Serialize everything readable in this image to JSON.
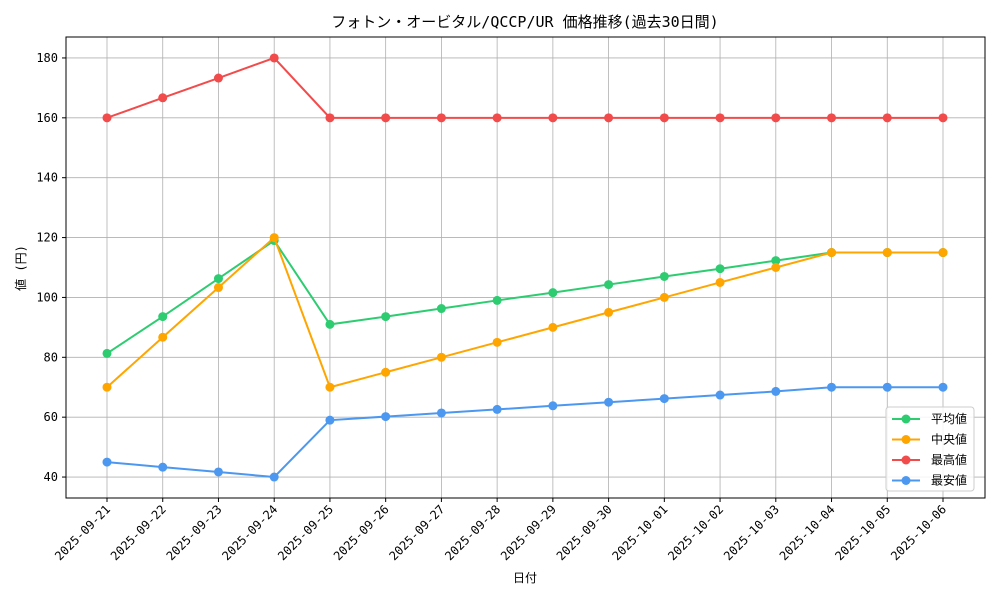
{
  "chart_data": {
    "type": "line",
    "title": "フォトン・オービタル/QCCP/UR 価格推移(過去30日間)",
    "xlabel": "日付",
    "ylabel": "値 (円)",
    "categories": [
      "2025-09-21",
      "2025-09-22",
      "2025-09-23",
      "2025-09-24",
      "2025-09-25",
      "2025-09-26",
      "2025-09-27",
      "2025-09-28",
      "2025-09-29",
      "2025-09-30",
      "2025-10-01",
      "2025-10-02",
      "2025-10-03",
      "2025-10-04",
      "2025-10-05",
      "2025-10-06"
    ],
    "ylim": [
      33,
      187
    ],
    "yticks": [
      40,
      60,
      80,
      100,
      120,
      140,
      160,
      180
    ],
    "grid": true,
    "legend_position": "bottom-right",
    "series": [
      {
        "name": "平均値",
        "color": "#2ecc71",
        "values": [
          81.3,
          93.6,
          106.3,
          119.0,
          91.0,
          93.6,
          96.3,
          99.0,
          101.6,
          104.3,
          107.0,
          109.6,
          112.3,
          115.0,
          115.0,
          115.0
        ]
      },
      {
        "name": "中央値",
        "color": "#ffa500",
        "values": [
          70,
          86.7,
          103.3,
          120,
          70,
          75,
          80,
          85,
          90,
          95,
          100,
          105,
          110,
          115,
          115,
          115
        ]
      },
      {
        "name": "最高値",
        "color": "#f24b4b",
        "values": [
          160,
          166.7,
          173.3,
          180,
          160,
          160,
          160,
          160,
          160,
          160,
          160,
          160,
          160,
          160,
          160,
          160
        ]
      },
      {
        "name": "最安値",
        "color": "#4c98f0",
        "values": [
          45,
          43.3,
          41.7,
          40,
          59,
          60.2,
          61.4,
          62.6,
          63.8,
          65.0,
          66.2,
          67.4,
          68.6,
          70,
          70,
          70
        ]
      }
    ]
  }
}
